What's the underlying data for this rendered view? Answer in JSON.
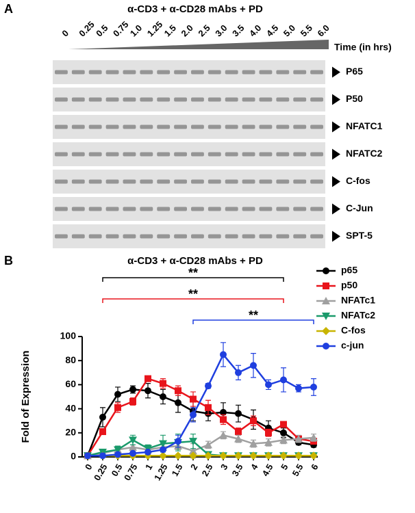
{
  "panel_a": {
    "label": "A",
    "title": "α-CD3 + α-CD28 mAbs + PD",
    "time_labels": [
      "0",
      "0.25",
      "0.5",
      "0.75",
      "1.0",
      "1.25",
      "1.5",
      "2.0",
      "2.5",
      "3.0",
      "3.5",
      "4.0",
      "4.5",
      "5.0",
      "5.5",
      "6.0"
    ],
    "time_axis_label": "Time (in hrs)",
    "blots": [
      "P65",
      "P50",
      "NFATC1",
      "NFATC2",
      "C-fos",
      "C-Jun",
      "SPT-5"
    ]
  },
  "panel_b": {
    "label": "B"
  },
  "chart_data": {
    "type": "line",
    "title": "α-CD3 + α-CD28 mAbs + PD",
    "y_label": "Fold of Expression",
    "categories": [
      "0",
      "0.25",
      "0.5",
      "0.75",
      "1",
      "1.25",
      "1.5",
      "2",
      "2.5",
      "3",
      "3.5",
      "4",
      "4.5",
      "5",
      "5.5",
      "6"
    ],
    "ylim": [
      0,
      100
    ],
    "yticks": [
      0,
      20,
      40,
      60,
      80,
      100
    ],
    "series": [
      {
        "name": "p65",
        "color": "#000000",
        "marker": "circle",
        "values": [
          1,
          33,
          52,
          56,
          55,
          50,
          45,
          38,
          36,
          37,
          36,
          31,
          24,
          20,
          12,
          10
        ],
        "errors": [
          0,
          8,
          6,
          3,
          6,
          6,
          8,
          8,
          6,
          8,
          7,
          8,
          6,
          4,
          2,
          2
        ]
      },
      {
        "name": "p50",
        "color": "#e8141b",
        "marker": "square",
        "values": [
          1,
          21,
          41,
          46,
          65,
          61,
          55,
          48,
          41,
          31,
          21,
          30,
          20,
          27,
          15,
          13
        ],
        "errors": [
          0,
          2,
          4,
          3,
          2,
          4,
          4,
          6,
          6,
          4,
          3,
          4,
          3,
          2,
          2,
          2
        ]
      },
      {
        "name": "NFATc1",
        "color": "#a0a0a0",
        "marker": "triangle-up",
        "values": [
          1,
          3,
          6,
          8,
          6,
          8,
          9,
          5,
          10,
          18,
          15,
          11,
          12,
          14,
          15,
          16
        ],
        "errors": [
          0,
          1,
          2,
          2,
          2,
          3,
          3,
          6,
          3,
          3,
          3,
          3,
          3,
          3,
          3,
          3
        ]
      },
      {
        "name": "NFATc2",
        "color": "#1a9a6b",
        "marker": "triangle-down",
        "values": [
          1,
          4,
          6,
          14,
          7,
          11,
          12,
          13,
          2,
          1,
          1,
          1,
          1,
          1,
          1,
          1
        ],
        "errors": [
          0,
          1,
          3,
          4,
          3,
          7,
          7,
          6,
          1,
          1,
          1,
          1,
          1,
          1,
          1,
          1
        ]
      },
      {
        "name": "C-fos",
        "color": "#c8b400",
        "marker": "diamond",
        "values": [
          1,
          1,
          1,
          1,
          1,
          1,
          1,
          1,
          1,
          1,
          1,
          1,
          1,
          1,
          1,
          1
        ],
        "errors": [
          0,
          0,
          0,
          0,
          0,
          0,
          0,
          0,
          0,
          0,
          0,
          0,
          0,
          0,
          0,
          0
        ]
      },
      {
        "name": "c-jun",
        "color": "#1f3fdf",
        "marker": "circle",
        "values": [
          1,
          1,
          2,
          3,
          4,
          6,
          13,
          35,
          59,
          85,
          70,
          76,
          60,
          64,
          57,
          58
        ],
        "errors": [
          0,
          0,
          0,
          0,
          0,
          1,
          5,
          6,
          2,
          10,
          6,
          10,
          4,
          10,
          3,
          7
        ]
      }
    ],
    "annotations": [
      {
        "text": "**",
        "color": "#000000",
        "from": "0.25",
        "to": "5"
      },
      {
        "text": "**",
        "color": "#e8141b",
        "from": "0.25",
        "to": "5"
      },
      {
        "text": "**",
        "color": "#1f3fdf",
        "from": "2",
        "to": "6"
      }
    ]
  }
}
